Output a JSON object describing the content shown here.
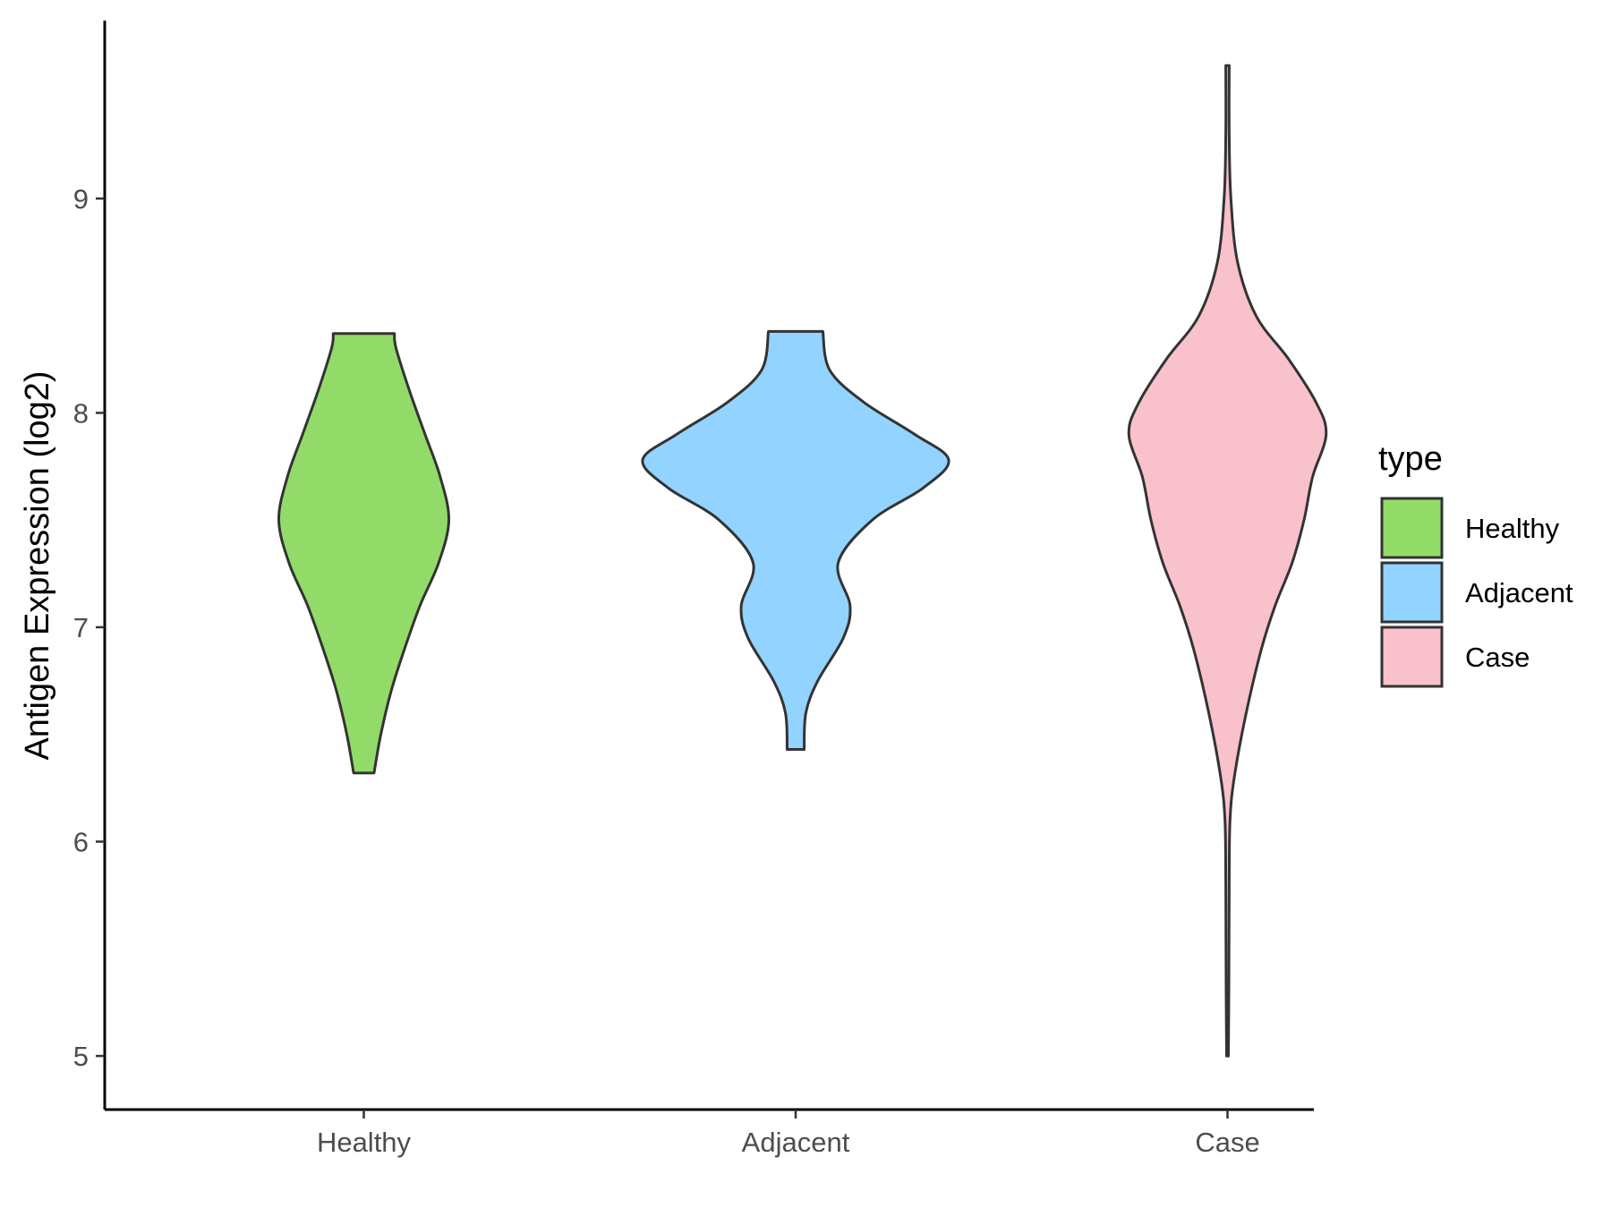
{
  "chart_data": {
    "type": "violin",
    "xlabel": "",
    "ylabel": "Antigen Expression (log2)",
    "ylim": [
      4.75,
      9.83
    ],
    "yticks": [
      5,
      6,
      7,
      8,
      9
    ],
    "categories": [
      "Healthy",
      "Adjacent",
      "Case"
    ],
    "grid": false,
    "legend": {
      "title": "type",
      "position": "right",
      "entries": [
        "Healthy",
        "Adjacent",
        "Case"
      ]
    },
    "series": [
      {
        "name": "Healthy",
        "color": "#93DB69",
        "min": 6.32,
        "max": 8.37,
        "density": [
          [
            6.32,
            0.06
          ],
          [
            6.5,
            0.1
          ],
          [
            6.7,
            0.16
          ],
          [
            6.9,
            0.24
          ],
          [
            7.1,
            0.33
          ],
          [
            7.3,
            0.44
          ],
          [
            7.5,
            0.5
          ],
          [
            7.7,
            0.45
          ],
          [
            7.9,
            0.36
          ],
          [
            8.1,
            0.27
          ],
          [
            8.3,
            0.19
          ],
          [
            8.37,
            0.18
          ]
        ]
      },
      {
        "name": "Adjacent",
        "color": "#93D3FF",
        "min": 6.43,
        "max": 8.38,
        "density": [
          [
            6.43,
            0.05
          ],
          [
            6.6,
            0.06
          ],
          [
            6.75,
            0.13
          ],
          [
            6.95,
            0.28
          ],
          [
            7.1,
            0.32
          ],
          [
            7.3,
            0.25
          ],
          [
            7.5,
            0.45
          ],
          [
            7.65,
            0.75
          ],
          [
            7.78,
            0.9
          ],
          [
            7.9,
            0.7
          ],
          [
            8.05,
            0.4
          ],
          [
            8.2,
            0.2
          ],
          [
            8.38,
            0.16
          ]
        ]
      },
      {
        "name": "Case",
        "color": "#F8C1CC",
        "min": 5.0,
        "max": 9.62,
        "density": [
          [
            5.0,
            0.005
          ],
          [
            5.3,
            0.008
          ],
          [
            5.8,
            0.01
          ],
          [
            6.1,
            0.015
          ],
          [
            6.3,
            0.04
          ],
          [
            6.6,
            0.11
          ],
          [
            6.9,
            0.2
          ],
          [
            7.1,
            0.28
          ],
          [
            7.3,
            0.38
          ],
          [
            7.5,
            0.45
          ],
          [
            7.7,
            0.5
          ],
          [
            7.9,
            0.58
          ],
          [
            8.05,
            0.52
          ],
          [
            8.25,
            0.36
          ],
          [
            8.45,
            0.17
          ],
          [
            8.7,
            0.06
          ],
          [
            9.0,
            0.02
          ],
          [
            9.3,
            0.01
          ],
          [
            9.62,
            0.01
          ]
        ]
      }
    ]
  }
}
